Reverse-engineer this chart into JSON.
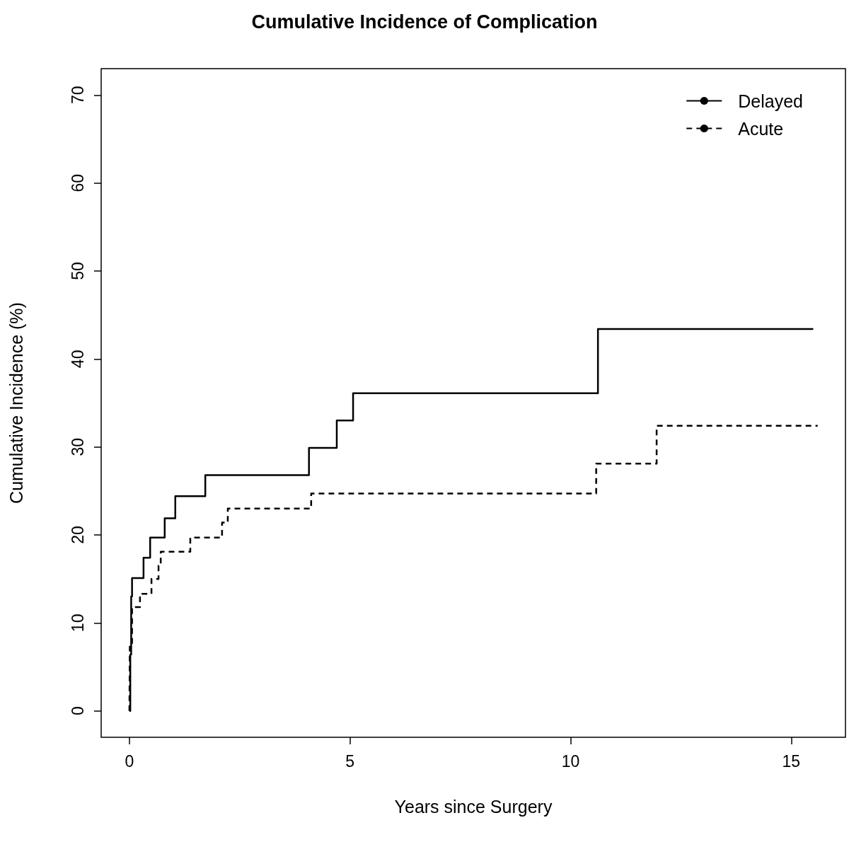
{
  "chart_data": {
    "type": "step",
    "title": "Cumulative Incidence of Complication",
    "xlabel": "Years since Surgery",
    "ylabel": "Cumulative Incidence (%)",
    "xlim": [
      -0.64,
      16.23
    ],
    "xticks": [
      0,
      5,
      10,
      15
    ],
    "ylim": [
      -3,
      73
    ],
    "yticks": [
      0,
      10,
      20,
      30,
      40,
      50,
      60,
      70
    ],
    "grid": false,
    "legend": "top right",
    "marker": "none",
    "series": [
      {
        "name": "Delayed",
        "color": "#000000",
        "line_style": "solid",
        "x": [
          0,
          0.02,
          0.04,
          0.06,
          0.32,
          0.47,
          0.8,
          1.04,
          1.72,
          4.07,
          4.7,
          5.07,
          10.62,
          15.5
        ],
        "values": [
          0,
          6.4,
          13.0,
          15.1,
          17.4,
          19.7,
          21.9,
          24.4,
          26.8,
          29.9,
          33.0,
          36.1,
          43.4,
          43.4
        ]
      },
      {
        "name": "Acute",
        "color": "#000000",
        "line_style": "dashed",
        "x": [
          0,
          0.01,
          0.06,
          0.24,
          0.5,
          0.66,
          0.71,
          1.38,
          2.1,
          2.23,
          4.12,
          10.58,
          11.95,
          15.6
        ],
        "values": [
          0,
          7.4,
          11.8,
          13.3,
          15.0,
          16.5,
          18.1,
          19.7,
          21.4,
          23.0,
          24.7,
          28.1,
          32.4,
          32.4
        ]
      }
    ]
  }
}
